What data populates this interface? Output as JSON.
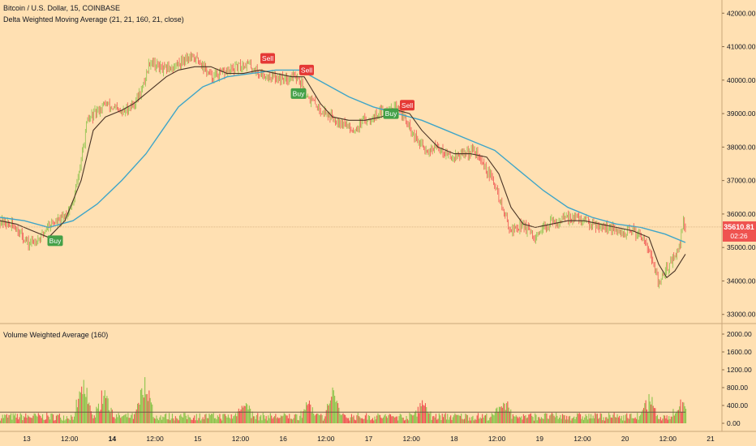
{
  "chart_data": {
    "type": "candlestick",
    "title": "Bitcoin / U.S. Dollar, 15, COINBASE",
    "indicator_label": "Delta Weighted Moving Average (21, 21, 160, 21, close)",
    "volume_label": "Volume Weighted Average (160)",
    "x_ticks": [
      "13",
      "12:00",
      "14",
      "12:00",
      "15",
      "12:00",
      "16",
      "12:00",
      "17",
      "12:00",
      "18",
      "12:00",
      "19",
      "12:00",
      "20",
      "12:00",
      "21"
    ],
    "x_ticks_bold": [
      "14"
    ],
    "price_axis": {
      "ticks": [
        "42000.00",
        "41000.00",
        "40000.00",
        "39000.00",
        "38000.00",
        "37000.00",
        "36000.00",
        "35000.00",
        "34000.00",
        "33000.00"
      ],
      "ylim": [
        32800,
        42200
      ]
    },
    "volume_axis": {
      "ticks": [
        "2000.00",
        "1600.00",
        "1200.00",
        "800.00",
        "400.00",
        "0.00"
      ],
      "ylim": [
        0,
        2000
      ]
    },
    "last_price": "35610.81",
    "countdown": "02:26",
    "price_path": [
      [
        0,
        35800
      ],
      [
        20,
        35600
      ],
      [
        35,
        35100
      ],
      [
        50,
        35300
      ],
      [
        60,
        35700
      ],
      [
        75,
        35800
      ],
      [
        90,
        36300
      ],
      [
        100,
        37600
      ],
      [
        108,
        38800
      ],
      [
        130,
        39300
      ],
      [
        150,
        39000
      ],
      [
        165,
        39300
      ],
      [
        175,
        39700
      ],
      [
        185,
        40600
      ],
      [
        200,
        40300
      ],
      [
        215,
        40400
      ],
      [
        230,
        40700
      ],
      [
        245,
        40600
      ],
      [
        260,
        40100
      ],
      [
        275,
        40200
      ],
      [
        290,
        40350
      ],
      [
        305,
        40500
      ],
      [
        320,
        40200
      ],
      [
        335,
        40100
      ],
      [
        350,
        40050
      ],
      [
        365,
        40150
      ],
      [
        380,
        39500
      ],
      [
        395,
        39100
      ],
      [
        410,
        38900
      ],
      [
        425,
        38700
      ],
      [
        435,
        38500
      ],
      [
        450,
        38800
      ],
      [
        465,
        39000
      ],
      [
        480,
        39200
      ],
      [
        495,
        39050
      ],
      [
        510,
        38300
      ],
      [
        525,
        37900
      ],
      [
        540,
        38000
      ],
      [
        555,
        37700
      ],
      [
        570,
        37800
      ],
      [
        585,
        37900
      ],
      [
        600,
        37300
      ],
      [
        610,
        36900
      ],
      [
        620,
        36100
      ],
      [
        630,
        35500
      ],
      [
        645,
        35700
      ],
      [
        660,
        35200
      ],
      [
        675,
        35700
      ],
      [
        690,
        35800
      ],
      [
        705,
        35900
      ],
      [
        720,
        35800
      ],
      [
        735,
        35700
      ],
      [
        750,
        35600
      ],
      [
        765,
        35400
      ],
      [
        780,
        35500
      ],
      [
        795,
        35300
      ],
      [
        805,
        34500
      ],
      [
        812,
        33900
      ],
      [
        820,
        34300
      ],
      [
        830,
        34700
      ],
      [
        838,
        35000
      ],
      [
        842,
        35800
      ],
      [
        845,
        35610
      ]
    ],
    "dwma_path": [
      [
        0,
        35800
      ],
      [
        20,
        35700
      ],
      [
        40,
        35500
      ],
      [
        60,
        35300
      ],
      [
        80,
        35800
      ],
      [
        100,
        37000
      ],
      [
        115,
        38500
      ],
      [
        130,
        38900
      ],
      [
        150,
        39100
      ],
      [
        165,
        39300
      ],
      [
        175,
        39500
      ],
      [
        190,
        39800
      ],
      [
        205,
        40100
      ],
      [
        220,
        40300
      ],
      [
        240,
        40400
      ],
      [
        260,
        40400
      ],
      [
        280,
        40200
      ],
      [
        300,
        40200
      ],
      [
        320,
        40300
      ],
      [
        340,
        40200
      ],
      [
        360,
        40100
      ],
      [
        375,
        40100
      ],
      [
        385,
        39700
      ],
      [
        395,
        39300
      ],
      [
        410,
        38900
      ],
      [
        430,
        38800
      ],
      [
        450,
        38800
      ],
      [
        470,
        38900
      ],
      [
        490,
        39100
      ],
      [
        505,
        39000
      ],
      [
        520,
        38500
      ],
      [
        540,
        38000
      ],
      [
        560,
        37800
      ],
      [
        580,
        37800
      ],
      [
        600,
        37700
      ],
      [
        615,
        37200
      ],
      [
        630,
        36200
      ],
      [
        645,
        35700
      ],
      [
        660,
        35600
      ],
      [
        680,
        35700
      ],
      [
        700,
        35800
      ],
      [
        720,
        35800
      ],
      [
        740,
        35700
      ],
      [
        760,
        35600
      ],
      [
        780,
        35500
      ],
      [
        800,
        35300
      ],
      [
        812,
        34500
      ],
      [
        822,
        34100
      ],
      [
        832,
        34300
      ],
      [
        845,
        34800
      ]
    ],
    "ma_path": [
      [
        0,
        35900
      ],
      [
        30,
        35800
      ],
      [
        60,
        35600
      ],
      [
        90,
        35800
      ],
      [
        120,
        36300
      ],
      [
        150,
        37000
      ],
      [
        180,
        37800
      ],
      [
        200,
        38500
      ],
      [
        220,
        39200
      ],
      [
        250,
        39800
      ],
      [
        280,
        40100
      ],
      [
        310,
        40200
      ],
      [
        340,
        40300
      ],
      [
        370,
        40300
      ],
      [
        400,
        39900
      ],
      [
        430,
        39500
      ],
      [
        460,
        39200
      ],
      [
        490,
        39000
      ],
      [
        520,
        38800
      ],
      [
        550,
        38500
      ],
      [
        580,
        38200
      ],
      [
        610,
        37900
      ],
      [
        640,
        37300
      ],
      [
        670,
        36700
      ],
      [
        700,
        36200
      ],
      [
        730,
        35900
      ],
      [
        760,
        35700
      ],
      [
        790,
        35600
      ],
      [
        820,
        35400
      ],
      [
        845,
        35150
      ]
    ],
    "signals": [
      {
        "label": "Buy",
        "x": 68,
        "price": 35200,
        "type": "buy"
      },
      {
        "label": "Sell",
        "x": 330,
        "price": 40650,
        "type": "sell"
      },
      {
        "label": "Sell",
        "x": 378,
        "price": 40300,
        "type": "sell"
      },
      {
        "label": "Buy",
        "x": 368,
        "price": 39600,
        "type": "buy"
      },
      {
        "label": "Buy",
        "x": 482,
        "price": 39000,
        "type": "buy"
      },
      {
        "label": "Sell",
        "x": 502,
        "price": 39250,
        "type": "sell"
      }
    ],
    "volume_spikes": [
      {
        "x": 102,
        "v": 1200
      },
      {
        "x": 128,
        "v": 1000
      },
      {
        "x": 178,
        "v": 1400
      },
      {
        "x": 300,
        "v": 700
      },
      {
        "x": 410,
        "v": 900
      },
      {
        "x": 380,
        "v": 600
      },
      {
        "x": 520,
        "v": 650
      },
      {
        "x": 620,
        "v": 700
      },
      {
        "x": 800,
        "v": 700
      },
      {
        "x": 838,
        "v": 600
      }
    ],
    "volume_avg": 250,
    "colors": {
      "background": "#ffe0b2",
      "up": "#8bc34a",
      "down": "#ef5350",
      "dwma": "#4a3426",
      "ma": "#3fa5c8",
      "buy": "#43a047",
      "sell": "#e53935",
      "axis_text": "#131722"
    }
  }
}
